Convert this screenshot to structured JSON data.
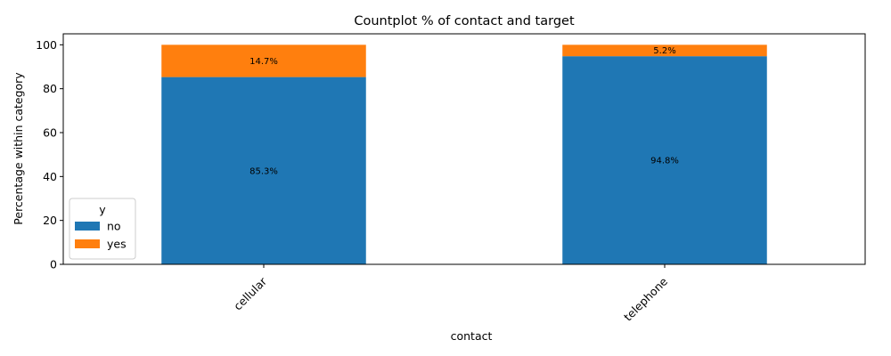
{
  "chart_data": {
    "type": "bar",
    "stacked": true,
    "title": "Countplot % of contact and target",
    "xlabel": "contact",
    "ylabel": "Percentage within category",
    "categories": [
      "cellular",
      "telephone"
    ],
    "series": [
      {
        "name": "no",
        "values": [
          85.3,
          94.8
        ],
        "labels": [
          "85.3%",
          "94.8%"
        ],
        "color": "#1f77b4"
      },
      {
        "name": "yes",
        "values": [
          14.7,
          5.2
        ],
        "labels": [
          "14.7%",
          "5.2%"
        ],
        "color": "#ff7f0e"
      }
    ],
    "ylim": [
      0,
      105
    ],
    "yticks": [
      0,
      20,
      40,
      60,
      80,
      100
    ],
    "legend": {
      "title": "y",
      "placement": "lower-left"
    },
    "grid": false
  }
}
